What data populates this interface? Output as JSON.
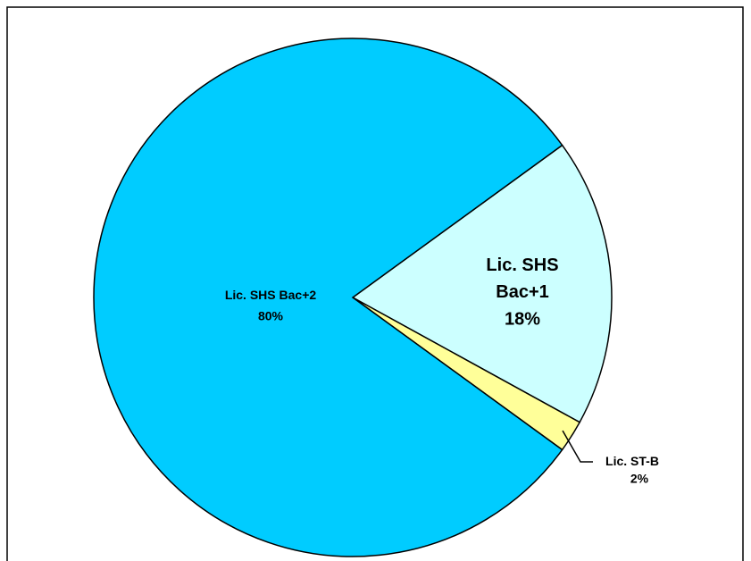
{
  "chart_data": {
    "type": "pie",
    "categories": [
      "Lic. SHS Bac+1",
      "Lic. ST-B",
      "Lic. SHS Bac+2"
    ],
    "values": [
      18,
      2,
      80
    ],
    "value_labels": [
      "18%",
      "2%",
      "80%"
    ],
    "colors": [
      "#ccffff",
      "#ffff99",
      "#00ccff"
    ]
  }
}
